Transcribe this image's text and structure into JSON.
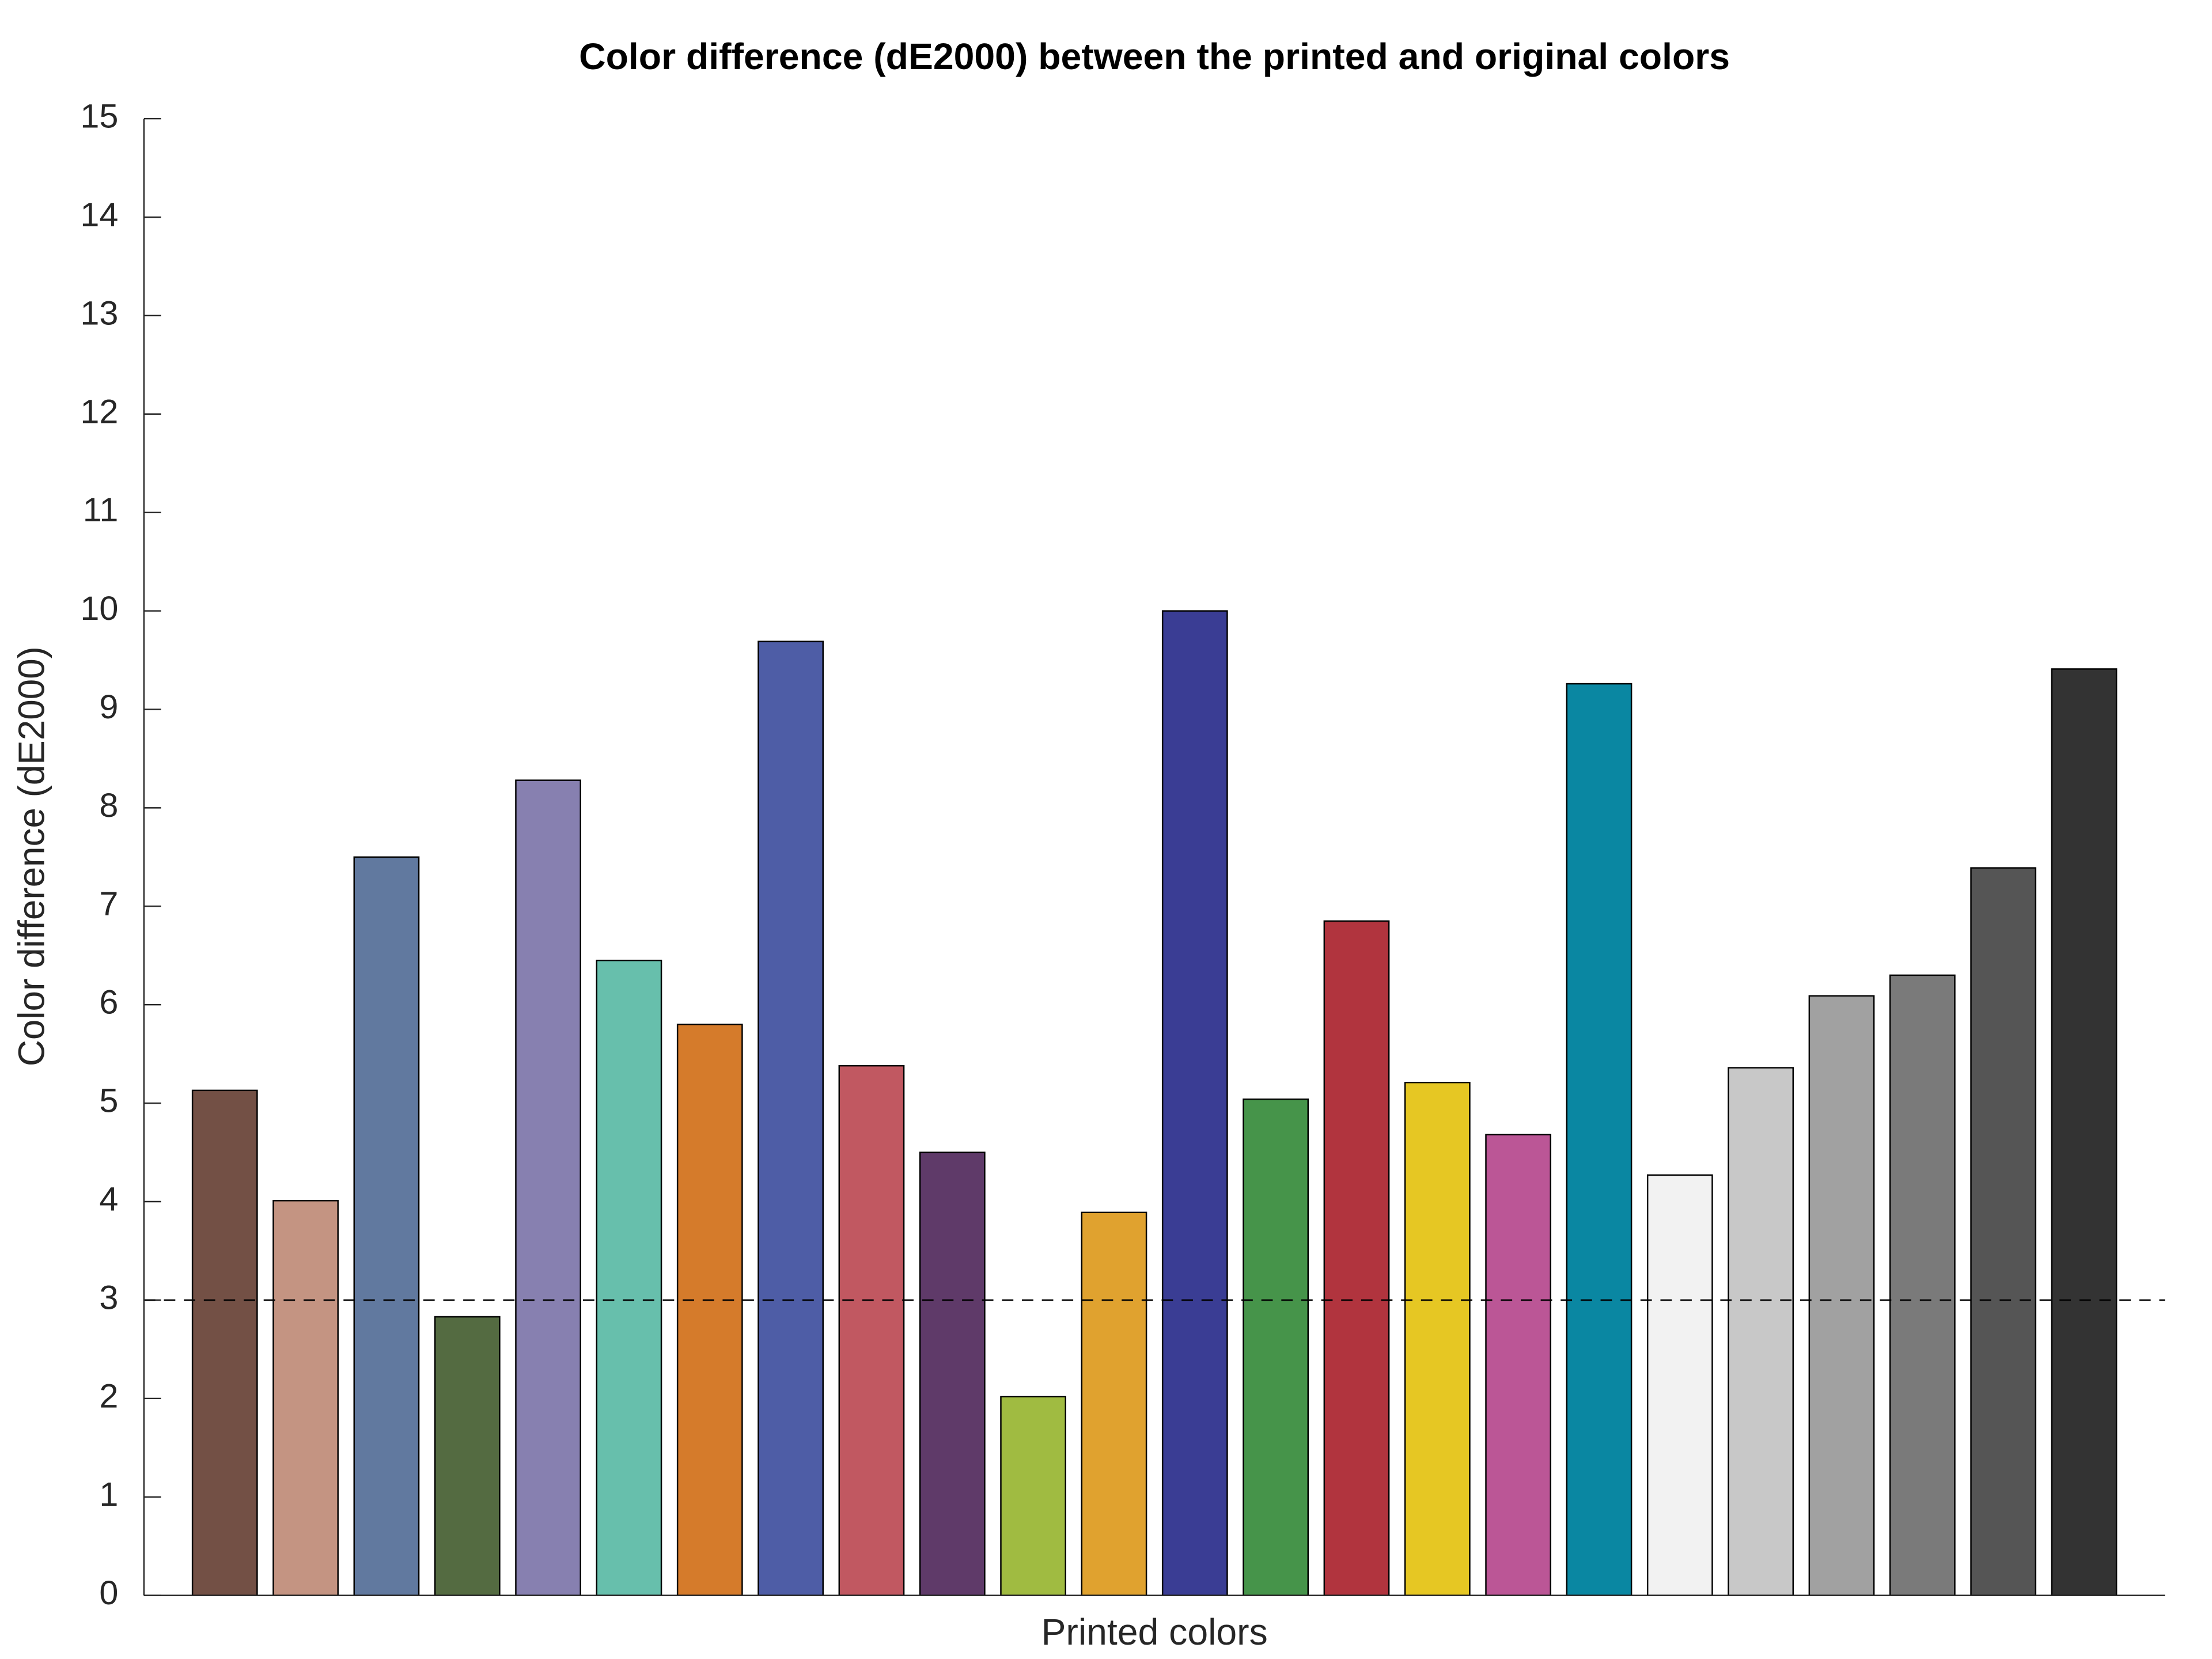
{
  "chart_data": {
    "type": "bar",
    "title": "Color difference (dE2000) between the printed and original colors",
    "x_label": "Printed colors",
    "y_label": "Color difference (dE2000)",
    "categories": [
      null,
      null,
      null,
      null,
      null,
      null,
      null,
      null,
      null,
      null,
      null,
      null,
      null,
      null,
      null,
      null,
      null,
      null,
      null,
      null,
      null,
      null,
      null,
      null
    ],
    "values": [
      5.13,
      4.01,
      7.5,
      2.83,
      8.28,
      6.45,
      5.8,
      9.69,
      5.38,
      4.5,
      2.02,
      3.89,
      10.0,
      5.04,
      6.85,
      5.21,
      4.68,
      9.26,
      4.27,
      5.36,
      6.09,
      6.3,
      7.39,
      9.41
    ],
    "colors": [
      "#735045",
      "#c49482",
      "#61799f",
      "#546b41",
      "#8780b0",
      "#67bfac",
      "#d57b2b",
      "#4e5da6",
      "#c15861",
      "#5f3a69",
      "#a0bb41",
      "#e0a22f",
      "#3a3d94",
      "#46944a",
      "#b1343e",
      "#e6c723",
      "#bb5696",
      "#0a87a2",
      "#f2f2f2",
      "#c8c8c8",
      "#a1a1a1",
      "#7a7a7a",
      "#555555",
      "#333333"
    ],
    "threshold": 3,
    "ylim": [
      0,
      15
    ],
    "yticks": [
      0,
      1,
      2,
      3,
      4,
      5,
      6,
      7,
      8,
      9,
      10,
      11,
      12,
      13,
      14,
      15
    ],
    "grid": false
  }
}
